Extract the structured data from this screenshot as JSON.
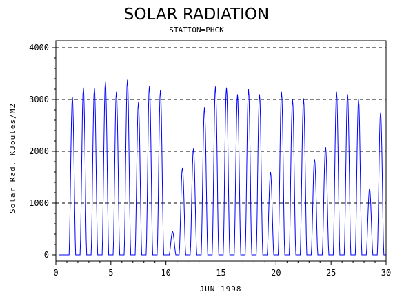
{
  "chart_data": {
    "type": "line",
    "title": "SOLAR RADIATION",
    "subtitle": "STATION=PHCK",
    "xlabel": "JUN 1998",
    "ylabel": "Solar Rad. KJoules/M2",
    "xlim": [
      0,
      30
    ],
    "ylim": [
      0,
      4000
    ],
    "x_ticks": [
      0,
      5,
      10,
      15,
      20,
      25,
      30
    ],
    "x_tick_labels": [
      "0",
      "5",
      "10",
      "15",
      "20",
      "25",
      "30"
    ],
    "y_ticks": [
      0,
      1000,
      2000,
      3000,
      4000
    ],
    "y_tick_labels": [
      "0",
      "1000",
      "2000",
      "3000",
      "4000"
    ],
    "grid_y": [
      1000,
      2000,
      3000,
      4000
    ],
    "grid_style": "dashed",
    "series_color": "#0000ff",
    "daily_peaks": [
      {
        "day": 1.5,
        "peak": 3050
      },
      {
        "day": 2.5,
        "peak": 3230
      },
      {
        "day": 3.5,
        "peak": 3220
      },
      {
        "day": 4.5,
        "peak": 3350
      },
      {
        "day": 5.5,
        "peak": 3150
      },
      {
        "day": 6.5,
        "peak": 3380
      },
      {
        "day": 7.5,
        "peak": 2950
      },
      {
        "day": 8.5,
        "peak": 3260
      },
      {
        "day": 9.5,
        "peak": 3180
      },
      {
        "day": 10.6,
        "peak": 450
      },
      {
        "day": 11.5,
        "peak": 1680
      },
      {
        "day": 12.5,
        "peak": 2050
      },
      {
        "day": 13.5,
        "peak": 2850
      },
      {
        "day": 14.5,
        "peak": 3250
      },
      {
        "day": 15.5,
        "peak": 3230
      },
      {
        "day": 16.5,
        "peak": 3100
      },
      {
        "day": 17.5,
        "peak": 3200
      },
      {
        "day": 18.5,
        "peak": 3100
      },
      {
        "day": 19.5,
        "peak": 1600
      },
      {
        "day": 20.5,
        "peak": 3150
      },
      {
        "day": 21.5,
        "peak": 3000
      },
      {
        "day": 22.5,
        "peak": 3020
      },
      {
        "day": 23.5,
        "peak": 1850
      },
      {
        "day": 24.5,
        "peak": 2080
      },
      {
        "day": 25.5,
        "peak": 3150
      },
      {
        "day": 26.5,
        "peak": 3100
      },
      {
        "day": 27.5,
        "peak": 3000
      },
      {
        "day": 28.5,
        "peak": 1280
      },
      {
        "day": 29.5,
        "peak": 2750
      }
    ]
  }
}
